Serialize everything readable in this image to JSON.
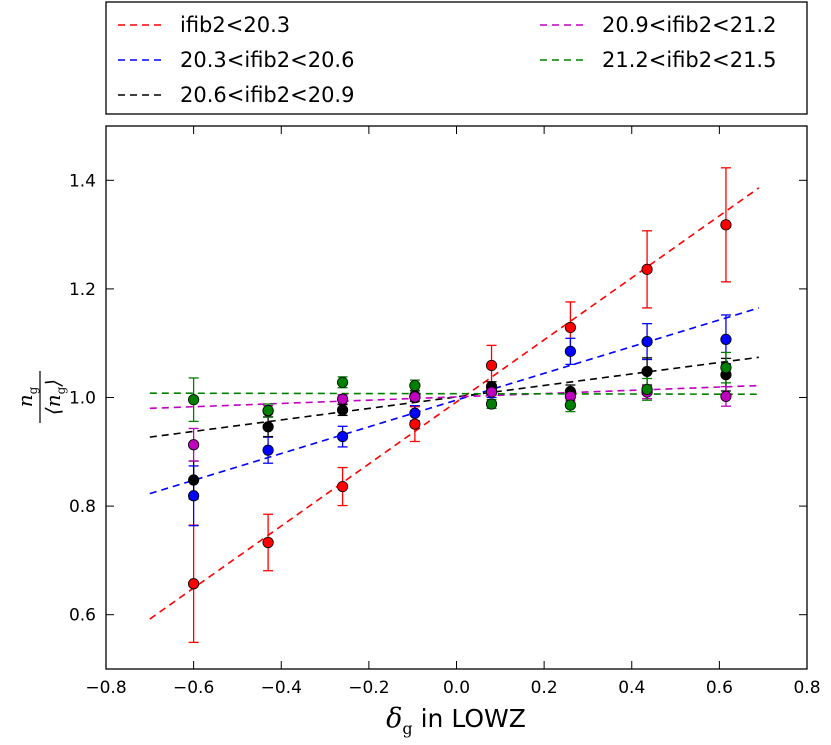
{
  "chart_data": {
    "type": "scatter",
    "title": "",
    "xlabel_symbol": "δ",
    "xlabel_sub": "g",
    "xlabel_rest": "in LOWZ",
    "ylabel_num": "n",
    "ylabel_num_sub": "g",
    "ylabel_den": "⟨n",
    "ylabel_den_sub": "g",
    "ylabel_den_close": "⟩",
    "xlim": [
      -0.8,
      0.8
    ],
    "ylim": [
      0.5,
      1.5
    ],
    "xticks": [
      -0.8,
      -0.6,
      -0.4,
      -0.2,
      0.0,
      0.2,
      0.4,
      0.6,
      0.8
    ],
    "xtick_labels": [
      "−0.8",
      "−0.6",
      "−0.4",
      "−0.2",
      "0.0",
      "0.2",
      "0.4",
      "0.6",
      "0.8"
    ],
    "yticks": [
      0.6,
      0.8,
      1.0,
      1.2,
      1.4
    ],
    "ytick_labels": [
      "0.6",
      "0.8",
      "1.0",
      "1.2",
      "1.4"
    ],
    "legend_placement": "top, outside plot, 2 columns",
    "x": [
      -0.6,
      -0.43,
      -0.26,
      -0.095,
      0.08,
      0.26,
      0.435,
      0.615
    ],
    "series": [
      {
        "name": "ifib2<20.3",
        "color": "#ff0000",
        "fit_line": [
          [
            -0.7,
            0.592
          ],
          [
            0.69,
            1.386
          ]
        ],
        "values": [
          0.657,
          0.733,
          0.836,
          0.951,
          1.059,
          1.129,
          1.236,
          1.318
        ],
        "errors": [
          0.108,
          0.052,
          0.035,
          0.032,
          0.037,
          0.047,
          0.071,
          0.105
        ]
      },
      {
        "name": "20.3<ifib2<20.6",
        "color": "#0000ff",
        "fit_line": [
          [
            -0.7,
            0.823
          ],
          [
            0.69,
            1.165
          ]
        ],
        "values": [
          0.819,
          0.903,
          0.928,
          0.971,
          1.012,
          1.085,
          1.103,
          1.107
        ],
        "errors": [
          0.055,
          0.024,
          0.019,
          0.014,
          0.012,
          0.024,
          0.033,
          0.045
        ]
      },
      {
        "name": "20.6<ifib2<20.9",
        "color": "#000000",
        "fit_line": [
          [
            -0.7,
            0.927
          ],
          [
            0.69,
            1.074
          ]
        ],
        "values": [
          0.848,
          0.946,
          0.977,
          1.003,
          1.02,
          1.011,
          1.048,
          1.042
        ],
        "errors": [
          0.035,
          0.018,
          0.01,
          0.01,
          0.009,
          0.012,
          0.025,
          0.03
        ]
      },
      {
        "name": "20.9<ifib2<21.2",
        "color": "#bf00bf",
        "fit_line": [
          [
            -0.7,
            0.98
          ],
          [
            0.69,
            1.022
          ]
        ],
        "values": [
          0.913,
          0.975,
          0.997,
          1.001,
          1.01,
          1.002,
          1.01,
          1.002
        ],
        "errors": [
          0.03,
          0.01,
          0.008,
          0.006,
          0.006,
          0.008,
          0.012,
          0.018
        ]
      },
      {
        "name": "21.2<ifib2<21.5",
        "color": "#008000",
        "fit_line": [
          [
            -0.7,
            1.008
          ],
          [
            0.69,
            1.006
          ]
        ],
        "values": [
          0.996,
          0.976,
          1.028,
          1.022,
          0.988,
          0.986,
          1.015,
          1.055
        ],
        "errors": [
          0.04,
          0.012,
          0.01,
          0.01,
          0.008,
          0.012,
          0.02,
          0.028
        ]
      }
    ]
  }
}
